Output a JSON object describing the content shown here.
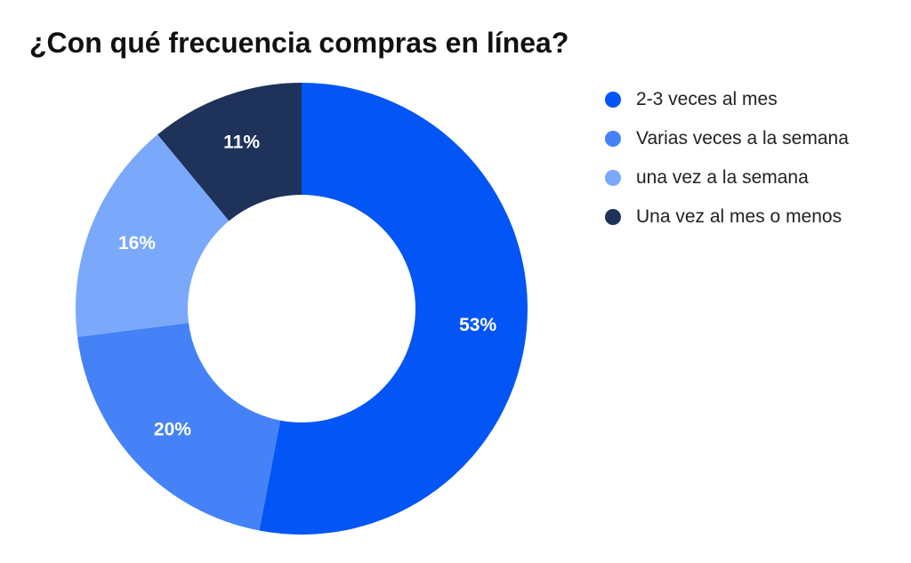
{
  "title": "¿Con qué frecuencia compras en línea?",
  "chart_data": {
    "type": "pie",
    "donut": true,
    "title": "¿Con qué frecuencia compras en línea?",
    "categories": [
      "2-3 veces al mes",
      "Varias veces a la semana",
      "una vez a la semana",
      "Una vez al mes o menos"
    ],
    "values": [
      53,
      20,
      16,
      11
    ],
    "data_labels": [
      "53%",
      "20%",
      "16%",
      "11%"
    ],
    "colors": [
      "#0355f5",
      "#4582f7",
      "#7aa8fb",
      "#1e325a"
    ],
    "legend_position": "right"
  }
}
